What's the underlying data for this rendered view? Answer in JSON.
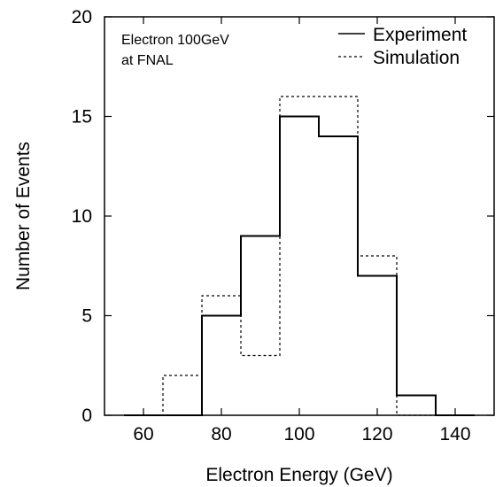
{
  "chart_data": {
    "type": "histogram",
    "annotation": [
      "Electron 100GeV",
      "at FNAL"
    ],
    "xlabel": "Electron Energy (GeV)",
    "ylabel": "Number of Events",
    "xlim": [
      50,
      150
    ],
    "ylim": [
      0,
      20
    ],
    "x_ticks": [
      60,
      80,
      100,
      120,
      140
    ],
    "y_ticks": [
      0,
      5,
      10,
      15,
      20
    ],
    "grid": false,
    "legend_position": "top-right",
    "bin_edges": [
      55,
      65,
      75,
      85,
      95,
      105,
      115,
      125,
      135,
      145
    ],
    "series": [
      {
        "name": "Experiment",
        "style": "solid",
        "color": "#000000",
        "values": [
          0,
          0,
          5,
          9,
          15,
          14,
          7,
          1,
          0
        ]
      },
      {
        "name": "Simulation",
        "style": "dotted",
        "color": "#000000",
        "values": [
          0,
          2,
          6,
          3,
          16,
          16,
          8,
          0,
          0
        ]
      }
    ]
  }
}
